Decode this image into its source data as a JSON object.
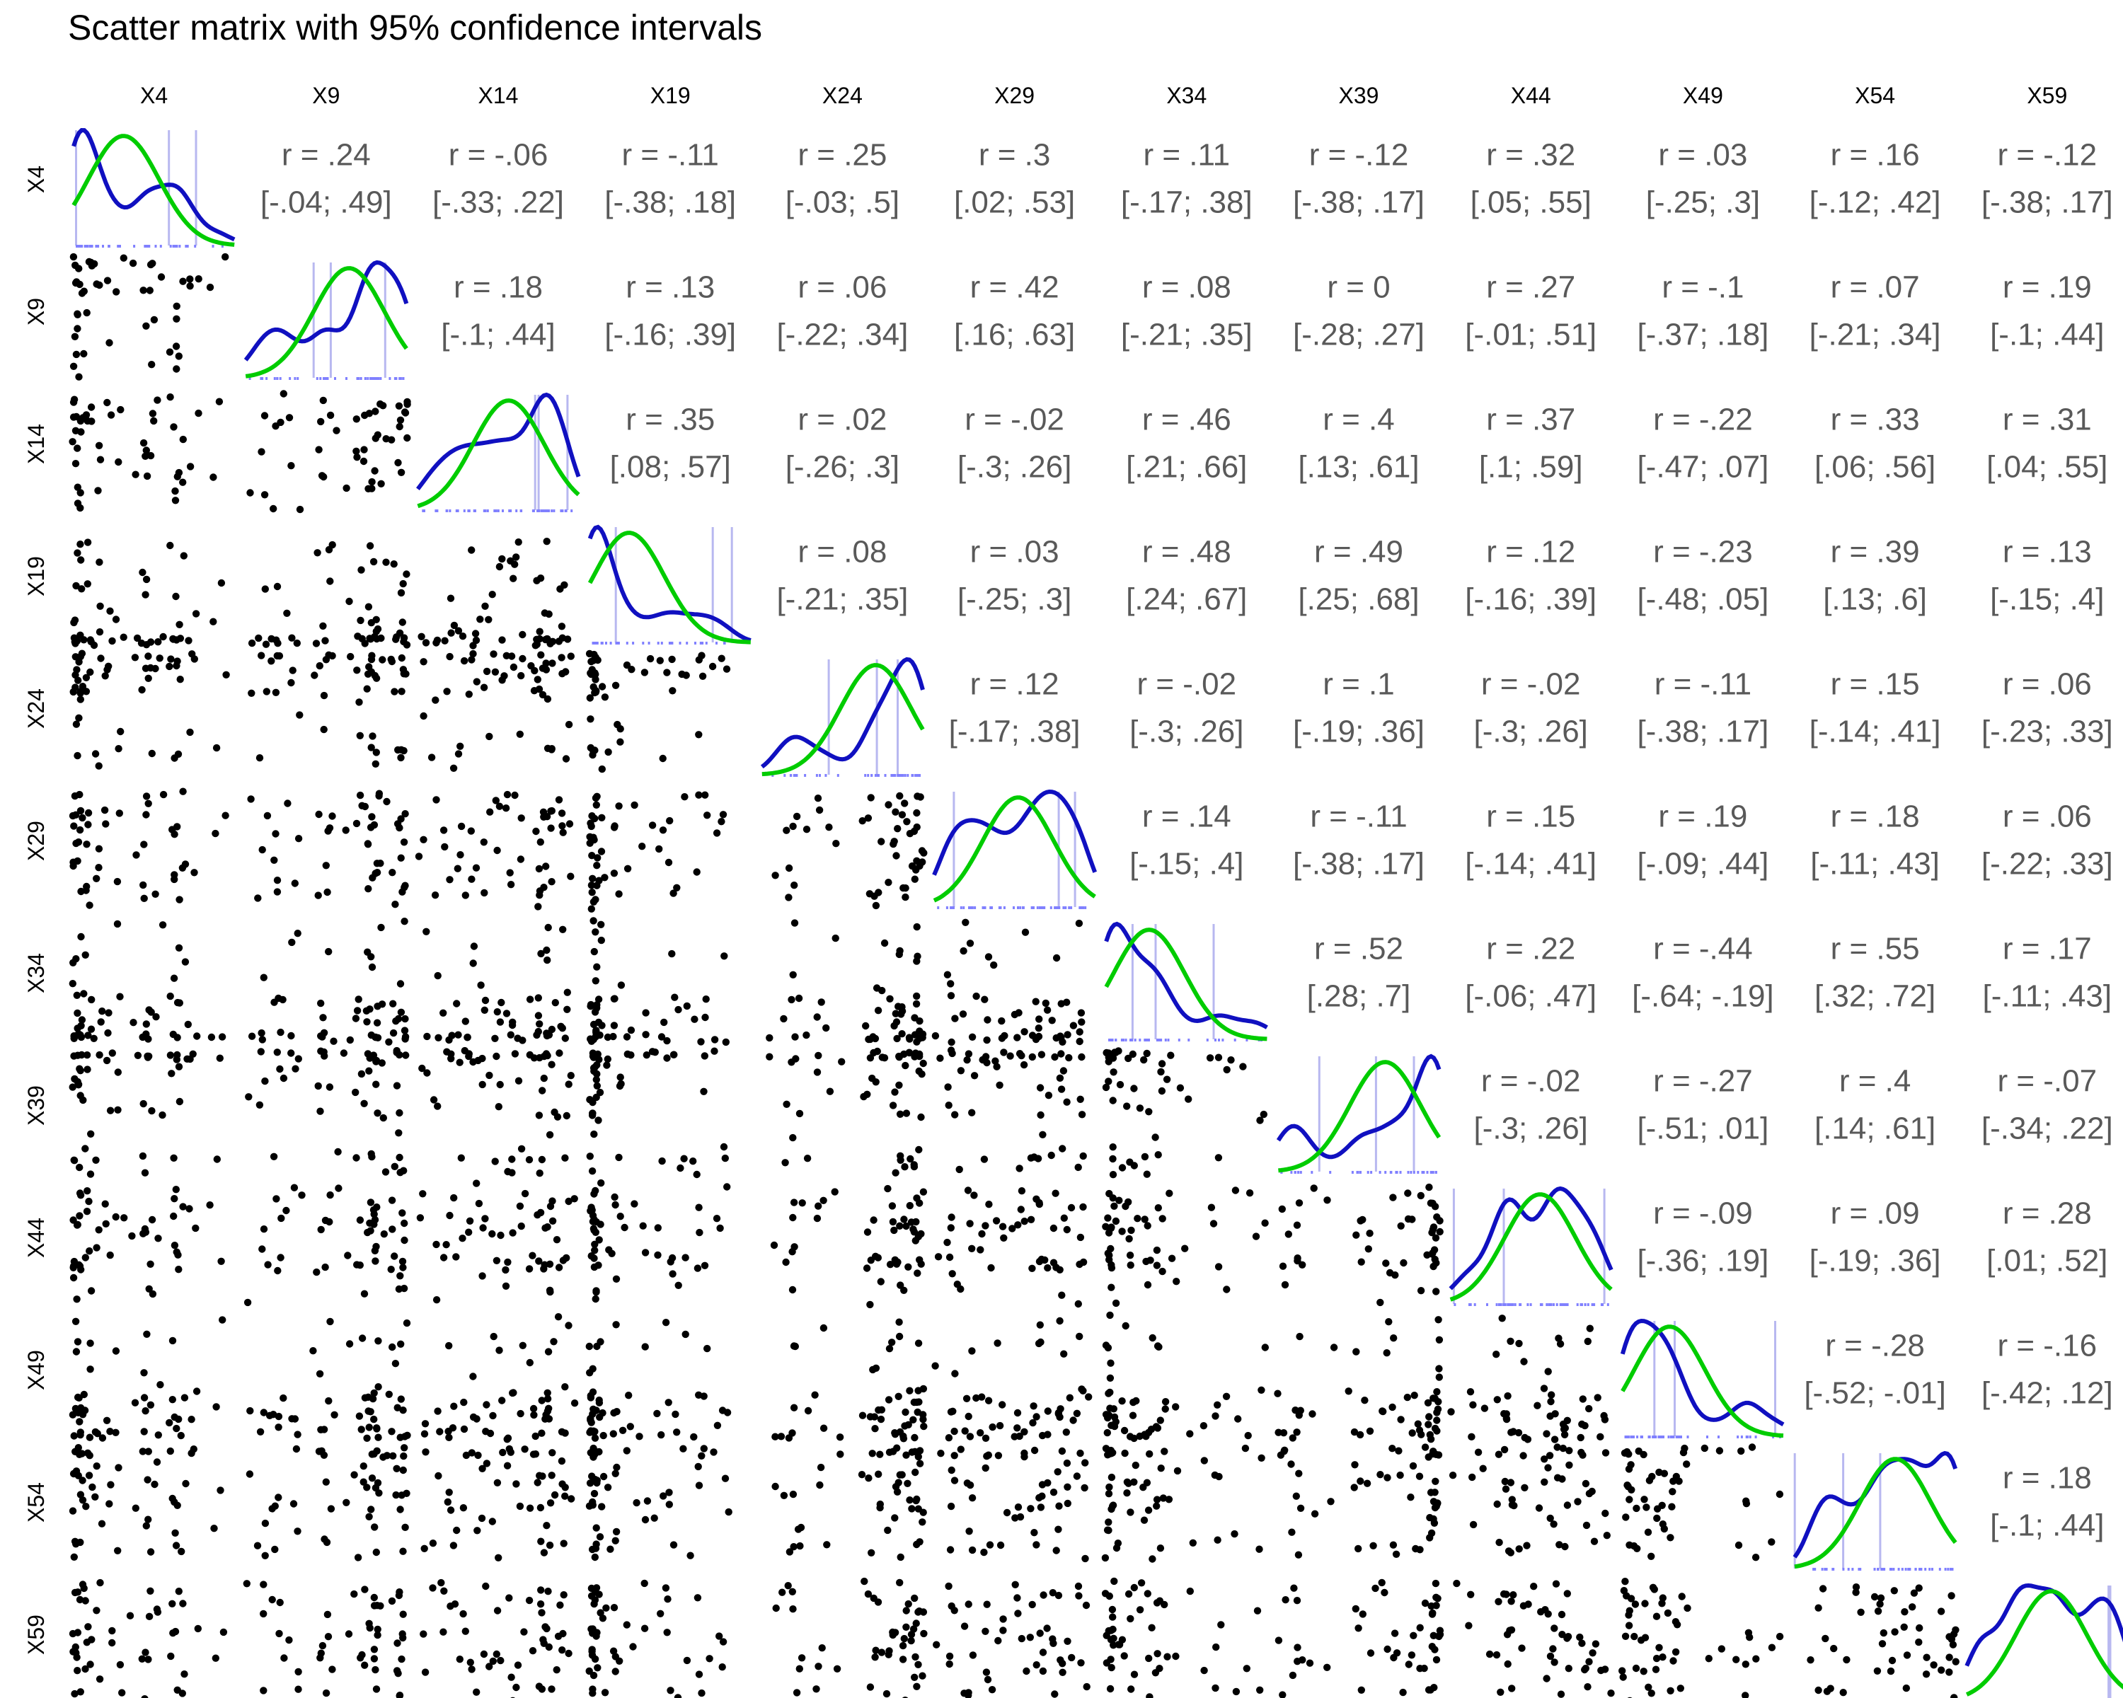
{
  "chart_data": {
    "type": "scatter-matrix",
    "title": "Scatter matrix with 95% confidence intervals",
    "variables": [
      "X4",
      "X9",
      "X14",
      "X19",
      "X24",
      "X29",
      "X34",
      "X39",
      "X44",
      "X49",
      "X54",
      "X59"
    ],
    "upper_panel_label_format": "r = {r} / [{lo}; {hi}]",
    "correlations": [
      {
        "row": "X4",
        "col": "X9",
        "r": ".24",
        "ci": "[-.04; .49]"
      },
      {
        "row": "X4",
        "col": "X14",
        "r": "-.06",
        "ci": "[-.33; .22]"
      },
      {
        "row": "X4",
        "col": "X19",
        "r": "-.11",
        "ci": "[-.38; .18]"
      },
      {
        "row": "X4",
        "col": "X24",
        "r": ".25",
        "ci": "[-.03; .5]"
      },
      {
        "row": "X4",
        "col": "X29",
        "r": ".3",
        "ci": "[.02; .53]"
      },
      {
        "row": "X4",
        "col": "X34",
        "r": ".11",
        "ci": "[-.17; .38]"
      },
      {
        "row": "X4",
        "col": "X39",
        "r": "-.12",
        "ci": "[-.38; .17]"
      },
      {
        "row": "X4",
        "col": "X44",
        "r": ".32",
        "ci": "[.05; .55]"
      },
      {
        "row": "X4",
        "col": "X49",
        "r": ".03",
        "ci": "[-.25; .3]"
      },
      {
        "row": "X4",
        "col": "X54",
        "r": ".16",
        "ci": "[-.12; .42]"
      },
      {
        "row": "X4",
        "col": "X59",
        "r": "-.12",
        "ci": "[-.38; .17]"
      },
      {
        "row": "X9",
        "col": "X14",
        "r": ".18",
        "ci": "[-.1; .44]"
      },
      {
        "row": "X9",
        "col": "X19",
        "r": ".13",
        "ci": "[-.16; .39]"
      },
      {
        "row": "X9",
        "col": "X24",
        "r": ".06",
        "ci": "[-.22; .34]"
      },
      {
        "row": "X9",
        "col": "X29",
        "r": ".42",
        "ci": "[.16; .63]"
      },
      {
        "row": "X9",
        "col": "X34",
        "r": ".08",
        "ci": "[-.21; .35]"
      },
      {
        "row": "X9",
        "col": "X39",
        "r": "0",
        "ci": "[-.28; .27]"
      },
      {
        "row": "X9",
        "col": "X44",
        "r": ".27",
        "ci": "[-.01; .51]"
      },
      {
        "row": "X9",
        "col": "X49",
        "r": "-.1",
        "ci": "[-.37; .18]"
      },
      {
        "row": "X9",
        "col": "X54",
        "r": ".07",
        "ci": "[-.21; .34]"
      },
      {
        "row": "X9",
        "col": "X59",
        "r": ".19",
        "ci": "[-.1; .44]"
      },
      {
        "row": "X14",
        "col": "X19",
        "r": ".35",
        "ci": "[.08; .57]"
      },
      {
        "row": "X14",
        "col": "X24",
        "r": ".02",
        "ci": "[-.26; .3]"
      },
      {
        "row": "X14",
        "col": "X29",
        "r": "-.02",
        "ci": "[-.3; .26]"
      },
      {
        "row": "X14",
        "col": "X34",
        "r": ".46",
        "ci": "[.21; .66]"
      },
      {
        "row": "X14",
        "col": "X39",
        "r": ".4",
        "ci": "[.13; .61]"
      },
      {
        "row": "X14",
        "col": "X44",
        "r": ".37",
        "ci": "[.1; .59]"
      },
      {
        "row": "X14",
        "col": "X49",
        "r": "-.22",
        "ci": "[-.47; .07]"
      },
      {
        "row": "X14",
        "col": "X54",
        "r": ".33",
        "ci": "[.06; .56]"
      },
      {
        "row": "X14",
        "col": "X59",
        "r": ".31",
        "ci": "[.04; .55]"
      },
      {
        "row": "X19",
        "col": "X24",
        "r": ".08",
        "ci": "[-.21; .35]"
      },
      {
        "row": "X19",
        "col": "X29",
        "r": ".03",
        "ci": "[-.25; .3]"
      },
      {
        "row": "X19",
        "col": "X34",
        "r": ".48",
        "ci": "[.24; .67]"
      },
      {
        "row": "X19",
        "col": "X39",
        "r": ".49",
        "ci": "[.25; .68]"
      },
      {
        "row": "X19",
        "col": "X44",
        "r": ".12",
        "ci": "[-.16; .39]"
      },
      {
        "row": "X19",
        "col": "X49",
        "r": "-.23",
        "ci": "[-.48; .05]"
      },
      {
        "row": "X19",
        "col": "X54",
        "r": ".39",
        "ci": "[.13; .6]"
      },
      {
        "row": "X19",
        "col": "X59",
        "r": ".13",
        "ci": "[-.15; .4]"
      },
      {
        "row": "X24",
        "col": "X29",
        "r": ".12",
        "ci": "[-.17; .38]"
      },
      {
        "row": "X24",
        "col": "X34",
        "r": "-.02",
        "ci": "[-.3; .26]"
      },
      {
        "row": "X24",
        "col": "X39",
        "r": ".1",
        "ci": "[-.19; .36]"
      },
      {
        "row": "X24",
        "col": "X44",
        "r": "-.02",
        "ci": "[-.3; .26]"
      },
      {
        "row": "X24",
        "col": "X49",
        "r": "-.11",
        "ci": "[-.38; .17]"
      },
      {
        "row": "X24",
        "col": "X54",
        "r": ".15",
        "ci": "[-.14; .41]"
      },
      {
        "row": "X24",
        "col": "X59",
        "r": ".06",
        "ci": "[-.23; .33]"
      },
      {
        "row": "X29",
        "col": "X34",
        "r": ".14",
        "ci": "[-.15; .4]"
      },
      {
        "row": "X29",
        "col": "X39",
        "r": "-.11",
        "ci": "[-.38; .17]"
      },
      {
        "row": "X29",
        "col": "X44",
        "r": ".15",
        "ci": "[-.14; .41]"
      },
      {
        "row": "X29",
        "col": "X49",
        "r": ".19",
        "ci": "[-.09; .44]"
      },
      {
        "row": "X29",
        "col": "X54",
        "r": ".18",
        "ci": "[-.11; .43]"
      },
      {
        "row": "X29",
        "col": "X59",
        "r": ".06",
        "ci": "[-.22; .33]"
      },
      {
        "row": "X34",
        "col": "X39",
        "r": ".52",
        "ci": "[.28; .7]"
      },
      {
        "row": "X34",
        "col": "X44",
        "r": ".22",
        "ci": "[-.06; .47]"
      },
      {
        "row": "X34",
        "col": "X49",
        "r": "-.44",
        "ci": "[-.64; -.19]"
      },
      {
        "row": "X34",
        "col": "X54",
        "r": ".55",
        "ci": "[.32; .72]"
      },
      {
        "row": "X34",
        "col": "X59",
        "r": ".17",
        "ci": "[-.11; .43]"
      },
      {
        "row": "X39",
        "col": "X44",
        "r": "-.02",
        "ci": "[-.3; .26]"
      },
      {
        "row": "X39",
        "col": "X49",
        "r": "-.27",
        "ci": "[-.51; .01]"
      },
      {
        "row": "X39",
        "col": "X54",
        "r": ".4",
        "ci": "[.14; .61]"
      },
      {
        "row": "X39",
        "col": "X59",
        "r": "-.07",
        "ci": "[-.34; .22]"
      },
      {
        "row": "X44",
        "col": "X49",
        "r": "-.09",
        "ci": "[-.36; .19]"
      },
      {
        "row": "X44",
        "col": "X54",
        "r": ".09",
        "ci": "[-.19; .36]"
      },
      {
        "row": "X44",
        "col": "X59",
        "r": ".28",
        "ci": "[.01; .52]"
      },
      {
        "row": "X49",
        "col": "X54",
        "r": "-.28",
        "ci": "[-.52; -.01]"
      },
      {
        "row": "X49",
        "col": "X59",
        "r": "-.16",
        "ci": "[-.42; .12]"
      },
      {
        "row": "X54",
        "col": "X59",
        "r": ".18",
        "ci": "[-.1; .44]"
      }
    ],
    "diagonal": {
      "type": "density",
      "curves": [
        {
          "name": "density",
          "color": "#1010c0"
        },
        {
          "name": "normal",
          "color": "#00cc00"
        }
      ],
      "rug_color": "#8080ff",
      "vline_color": "#b8b8f0"
    },
    "lower_panels": {
      "type": "scatter",
      "point_color": "#000000"
    },
    "grid": false,
    "axes_visible": false
  }
}
